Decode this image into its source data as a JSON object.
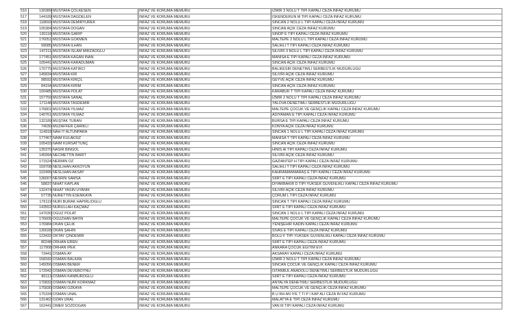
{
  "table": {
    "rows": [
      [
        "516",
        "130389",
        "MUSTAFA ÇOLKESEN",
        "INFAZ VE KORUMA MEMURU",
        "IZMIR 3 NOLU T TIPI KAPALI CEZA INFAZ KURUMU"
      ],
      [
        "517",
        "144189",
        "MUSTAFA DAGDELEN",
        "INFAZ VE KORUMA MEMURU",
        "ISKENDERUN M TIPI KAPALI CEZA INFAZ KURUMU"
      ],
      [
        "518",
        "118693",
        "MUSTAFA DEMIRYUREK",
        "INFAZ VE KORUMA MEMURU",
        "SINCAN 2 NOLU L TIPI KAPALI CEZA INFAZ KURUMU"
      ],
      [
        "519",
        "105384",
        "MUSTAFA DOGAN",
        "INFAZ VE KORUMA MEMURU",
        "SINCAN AÇIK CEZA INFAZ KURUMU"
      ],
      [
        "520",
        "130118",
        "MUSTAFA GARIP",
        "INFAZ VE KORUMA MEMURU",
        "SINOP E TIPI KAPALI CEZA INFAZ KURUMU"
      ],
      [
        "521",
        "176051",
        "MUSTAFA GOKMEN",
        "INFAZ VE KORUMA MEMURU",
        "MALTEPE 2 NOLU L TIPI KAPALI CEZA INFAZ KURUMU"
      ],
      [
        "522",
        "99085",
        "MUSTAFA ILHAN",
        "INFAZ VE KORUMA MEMURU",
        "SALIHLI T TIPI KAPALI CEZA INFAZ KURUMU"
      ],
      [
        "523",
        "147211",
        "MUSTAFA ISLAM MIRZAOGLU",
        "INFAZ VE KORUMA MEMURU",
        "SILIVRI 3 NOLU L TIPI KAPALI CEZA INFAZ KURUMU"
      ],
      [
        "524",
        "177451",
        "MUSTAFA KAGAN INAN",
        "INFAZ VE KORUMA MEMURU",
        "MANISA E TIPI KAPALI CEZA INFAZ KURUMU"
      ],
      [
        "525",
        "105441",
        "MUSTAFA KARADUMAN",
        "INFAZ VE KORUMA MEMURU",
        "SINCAN AÇIK CEZA INFAZ KURUMU"
      ],
      [
        "526",
        "170775",
        "MUSTAFA KATIRCI",
        "INFAZ VE KORUMA MEMURU",
        "BALIKESIR DENETIMLI SERBESTLIK MUDURLUGU"
      ],
      [
        "527",
        "145834",
        "MUSTAFA KIR",
        "INFAZ VE KORUMA MEMURU",
        "SILIVRI AÇIK CEZA INFAZ KURUMU"
      ],
      [
        "528",
        "98592",
        "MUSTAFA KIRÇIL",
        "INFAZ VE KORUMA MEMURU",
        "GEYVE AÇIK CEZA INFAZ KURUMU"
      ],
      [
        "529",
        "84194",
        "MUSTAFA KIRIM",
        "INFAZ VE KORUMA MEMURU",
        "SINCAN AÇIK CEZA INFAZ KURUMU"
      ],
      [
        "530",
        "100485",
        "MUSTAFA POLAT",
        "INFAZ VE KORUMA MEMURU",
        "KARABUK T TIPI KAPALI CEZA INFAZ KURUMU"
      ],
      [
        "531",
        "157759",
        "MUSTAFA SANAL",
        "INFAZ VE KORUMA MEMURU",
        "IZMIR 2 NOLU T TIPI KAPALI CEZA INFAZ KURUMU"
      ],
      [
        "532",
        "171148",
        "MUSTAFA TASDEMIR",
        "INFAZ VE KORUMA MEMURU",
        "YALOVA DENETIMLI SERBESTLIK MUDURLUGU"
      ],
      [
        "533",
        "176801",
        "MUSTAFA YILMAZ",
        "INFAZ VE KORUMA MEMURU",
        "MALTEPE ÇOCUK VE GENÇLIK KAPALI CEZA INFAZ KURUMU"
      ],
      [
        "534",
        "140761",
        "MUSTAFA YILMAZ",
        "INFAZ VE KORUMA MEMURU",
        "ADIYAMAN E TIPI KAPALI CEZA INFAZ KURUMU"
      ],
      [
        "535",
        "132189",
        "MUŞTAK TURAN",
        "INFAZ VE KORUMA MEMURU",
        "BURSA E TIPI KAPALI CEZA INFAZ KURUMU"
      ],
      [
        "536",
        "74030",
        "MUZAFFER ÇARIKLI",
        "INFAZ VE KORUMA MEMURU",
        "KONYA AÇIK CEZA INFAZ KURUMU"
      ],
      [
        "537",
        "114918",
        "NAH IT ALTUNPARA",
        "INFAZ VE KORUMA MEMURU",
        "SINCAN 1 NOLU L TIPI KAPALI CEZA INFAZ KURUMU"
      ],
      [
        "538",
        "177467",
        "NAIM KULAKSIZ",
        "INFAZ VE KORUMA MEMURU",
        "MANISA T TIPI KAPALI CEZA INFAZ KURUMU"
      ],
      [
        "539",
        "105433",
        "NAIM KURSATTUNÇ",
        "INFAZ VE KORUMA MEMURU",
        "SINCAN AÇIK CEZA INFAZ KURUMU"
      ],
      [
        "540",
        "135370",
        "NASIR BINGOL",
        "INFAZ VE KORUMA MEMURU",
        "HINIS AI TIPI KAPALI CEZA INFAZ KURUMU"
      ],
      [
        "541",
        "145994",
        "NECMETTIN BARIT",
        "INFAZ VE KORUMA MEMURU",
        "SILIVRI AÇIK CEZA INFAZ KURUMU"
      ],
      [
        "542",
        "171524",
        "NERMIN OZ",
        "INFAZ VE KORUMA MEMURU",
        "GAZIANTEP H TIPI KAPALI CEZA INFAZ KURUMU"
      ],
      [
        "543",
        "159708",
        "NESLIHAN AKKOYUN",
        "INFAZ VE KORUMA MEMURU",
        "SALIHLI T TIPI KAPALI CEZA INFAZ KURUMU"
      ],
      [
        "544",
        "102495",
        "NESLIHAN AKSAY",
        "INFAZ VE KORUMA MEMURU",
        "KAHRAMANMARAŞ E TIPI KAPALI CEZA INFAZ KURUMU"
      ],
      [
        "545",
        "136007",
        "NESRIN SAMSA",
        "INFAZ VE KORUMA MEMURU",
        "SIIRT E TIPI KAPALI CEZA INFAZ KURUMU"
      ],
      [
        "546",
        "58837",
        "NIHAT KAPLAN",
        "INFAZ VE KORUMA MEMURU",
        "DIYARBAKIR D TIPI YUKSEK GUVENLIKLI KAPALI CEZA INFAZ KURUMU"
      ],
      [
        "547",
        "132474",
        "NIHAT YASIN UYANIK",
        "INFAZ VE KORUMA MEMURU",
        "SILIVRI AÇIK CEZA INFAZ KURUMU"
      ],
      [
        "548",
        "57735",
        "NURETTIN ESENKAYA",
        "INFAZ VE KORUMA MEMURU",
        "ÇORUM L TIPI CEZA INFAZ KURUMU"
      ],
      [
        "549",
        "176119",
        "NURI BURAK HAPIRLIOGLU",
        "INFAZ VE KORUMA MEMURU",
        "SINCAN T TIPI KAPALI CEZA INFAZ KURUMU"
      ],
      [
        "550",
        "143552",
        "NURULLAH KAÇMAZ",
        "INFAZ VE KORUMA MEMURU",
        "SIIRT E TIPI KAPALI CEZA INFAZ KURUMU"
      ],
      [
        "551",
        "147030",
        "OGUZ POLAT",
        "INFAZ VE KORUMA MEMURU",
        "SINCAN 1 NOLU L TIPI KAPALI CEZA INFAZ KURUMU"
      ],
      [
        "552",
        "176605",
        "OGUZHAN BAYIN",
        "INFAZ VE KORUMA MEMURU",
        "MALTEPE ÇOCUK VE GENÇLIK KAPALI CEZA INFAZ KURUMU"
      ],
      [
        "553",
        "176984",
        "OKAN ÇELIK",
        "INFAZ VE KORUMA MEMURU",
        "YENIŞEHIR KADIN KAPALI CEZA INFAZ KURUMU"
      ],
      [
        "554",
        "130028",
        "OKAN ŞAHIN",
        "INFAZ VE KORUMA MEMURU",
        "SIVAS E TIPI KAPALI CEZA INFAZ KURUMU"
      ],
      [
        "555",
        "123432",
        "OKTAY ÇINDEMIR",
        "INFAZ VE KORUMA MEMURU",
        "BOLU F TIPI YUKSEK GUVENLIKLI KAPALI CEZA INFAZ KURUMU"
      ],
      [
        "556",
        "80248",
        "ORHAN EREN",
        "INFAZ VE KORUMA MEMURU",
        "SIIRT E TIPI KAPALI CEZA INFAZ KURUMU"
      ],
      [
        "557",
        "117908",
        "ORHAN IPEK",
        "INFAZ VE KORUMA MEMURU",
        "ANKARA ÇOCUK EGITIM EVI"
      ],
      [
        "558",
        "73441",
        "OSMAN AY",
        "INFAZ VE KORUMA MEMURU",
        "AKSARAY KAPALI CEZA INFAZ KURUMU"
      ],
      [
        "559",
        "158342",
        "OSMAN BALKAN",
        "INFAZ VE KORUMA MEMURU",
        "IZMIR 2 NOLU T TIPI KAPALI CEZA INFAZ KURUMU"
      ],
      [
        "560",
        "145056",
        "OSMAN BENER",
        "INFAZ VE KORUMA MEMURU",
        "SINCAN ÇOCUK VE GENÇLIK KAPALI CEZA INFAZ KURUMU"
      ],
      [
        "561",
        "172942",
        "OSMAN DEVEBOYNU",
        "INFAZ VE KORUMA MEMURU",
        "ISTANBUL ANADOLU DENETIMLI SERBESTLIK MUDURLUGU"
      ],
      [
        "562",
        "80113",
        "OSMAN KANBUROGLU",
        "INFAZ VE KORUMA MEMURU",
        "SIIRT E TIPI KAPALI CEZA INFAZ KURUMU"
      ],
      [
        "563",
        "170832",
        "OSMAN NURI KORKMAZ",
        "INFAZ VE KORUMA MEMURU",
        "ANTALYA DENETIMLI SERBESTLIK MUDURLUGU"
      ],
      [
        "564",
        "175830",
        "OSMAN OZKAYA",
        "INFAZ VE KORUMA MEMURU",
        "MALTEPE ÇOCUK VE GENÇLIK CEZA INFAZ KURUMU"
      ],
      [
        "565",
        "175334",
        "OSMAN UNAL",
        "INFAZ VE KORUMA MEMURU",
        "B U RH AN IYE T TI P I KAP ALI CEZA IN FAZ KURUMU"
      ],
      [
        "566",
        "131462",
        "OZAN URAL",
        "INFAZ VE KORUMA MEMURU",
        "MALATYA E TIPI CEZA INFAZ KURUMU"
      ],
      [
        "567",
        "162441",
        "OMER SOZDOGAN",
        "INFAZ VE KORUMA MEMURU",
        "VAN M TIPI KAPALI CEZA INFAZ KURUMU"
      ]
    ]
  }
}
